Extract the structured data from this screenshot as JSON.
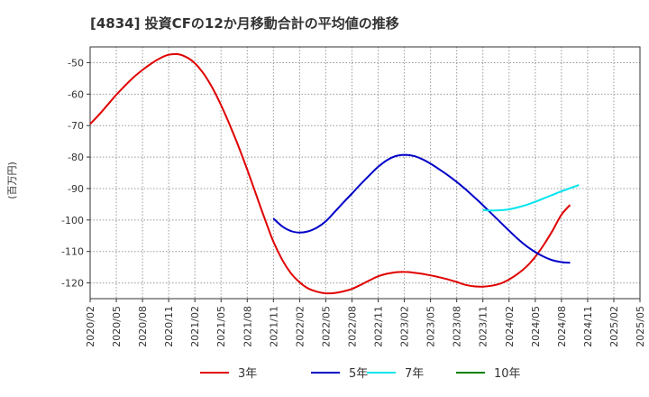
{
  "chart_data": {
    "type": "line",
    "title": "[4834]  投資CFの12か月移動合計の平均値の推移",
    "ylabel": "(百万円)",
    "xlabel": "",
    "ylim": [
      -125,
      -45
    ],
    "yticks": [
      -50,
      -60,
      -70,
      -80,
      -90,
      -100,
      -110,
      -120
    ],
    "xlim": [
      "2020-02",
      "2025-05"
    ],
    "xticks": [
      "2020/02",
      "2020/05",
      "2020/08",
      "2020/11",
      "2021/02",
      "2021/05",
      "2021/08",
      "2021/11",
      "2022/02",
      "2022/05",
      "2022/08",
      "2022/11",
      "2023/02",
      "2023/05",
      "2023/08",
      "2023/11",
      "2024/02",
      "2024/05",
      "2024/08",
      "2024/11",
      "2025/02",
      "2025/05"
    ],
    "grid": true,
    "legend_position": "bottom",
    "series": [
      {
        "name": "3年",
        "color": "#e00000",
        "points": [
          [
            "2020-02",
            -69.5
          ],
          [
            "2020-03",
            -66.6
          ],
          [
            "2020-04",
            -63.4
          ],
          [
            "2020-05",
            -60.2
          ],
          [
            "2020-06",
            -57.3
          ],
          [
            "2020-07",
            -54.6
          ],
          [
            "2020-08",
            -52.3
          ],
          [
            "2020-09",
            -50.3
          ],
          [
            "2020-10",
            -48.6
          ],
          [
            "2020-11",
            -47.5
          ],
          [
            "2020-12",
            -47.3
          ],
          [
            "2021-01",
            -48.2
          ],
          [
            "2021-02",
            -50.2
          ],
          [
            "2021-03",
            -53.5
          ],
          [
            "2021-04",
            -58.0
          ],
          [
            "2021-05",
            -63.5
          ],
          [
            "2021-06",
            -69.8
          ],
          [
            "2021-07",
            -76.6
          ],
          [
            "2021-08",
            -84.0
          ],
          [
            "2021-09",
            -91.8
          ],
          [
            "2021-10",
            -99.6
          ],
          [
            "2021-11",
            -106.9
          ],
          [
            "2021-12",
            -112.6
          ],
          [
            "2022-01",
            -116.9
          ],
          [
            "2022-02",
            -119.8
          ],
          [
            "2022-03",
            -121.8
          ],
          [
            "2022-04",
            -122.8
          ],
          [
            "2022-05",
            -123.3
          ],
          [
            "2022-06",
            -123.2
          ],
          [
            "2022-07",
            -122.7
          ],
          [
            "2022-08",
            -121.9
          ],
          [
            "2022-09",
            -120.6
          ],
          [
            "2022-10",
            -119.2
          ],
          [
            "2022-11",
            -117.9
          ],
          [
            "2022-12",
            -117.1
          ],
          [
            "2023-01",
            -116.6
          ],
          [
            "2023-02",
            -116.5
          ],
          [
            "2023-03",
            -116.7
          ],
          [
            "2023-04",
            -117.1
          ],
          [
            "2023-05",
            -117.6
          ],
          [
            "2023-06",
            -118.2
          ],
          [
            "2023-07",
            -118.9
          ],
          [
            "2023-08",
            -119.7
          ],
          [
            "2023-09",
            -120.6
          ],
          [
            "2023-10",
            -121.1
          ],
          [
            "2023-11",
            -121.2
          ],
          [
            "2023-12",
            -120.9
          ],
          [
            "2024-01",
            -120.2
          ],
          [
            "2024-02",
            -118.9
          ],
          [
            "2024-03",
            -117.1
          ],
          [
            "2024-04",
            -114.8
          ],
          [
            "2024-05",
            -111.7
          ],
          [
            "2024-06",
            -107.8
          ],
          [
            "2024-07",
            -103.3
          ],
          [
            "2024-08",
            -98.3
          ],
          [
            "2024-09",
            -95.2
          ]
        ]
      },
      {
        "name": "5年",
        "color": "#0000c8",
        "points": [
          [
            "2021-11",
            -99.5
          ],
          [
            "2021-12",
            -102.0
          ],
          [
            "2022-01",
            -103.5
          ],
          [
            "2022-02",
            -104.0
          ],
          [
            "2022-03",
            -103.6
          ],
          [
            "2022-04",
            -102.4
          ],
          [
            "2022-05",
            -100.4
          ],
          [
            "2022-06",
            -97.5
          ],
          [
            "2022-07",
            -94.5
          ],
          [
            "2022-08",
            -91.6
          ],
          [
            "2022-09",
            -88.6
          ],
          [
            "2022-10",
            -85.8
          ],
          [
            "2022-11",
            -83.1
          ],
          [
            "2022-12",
            -81.0
          ],
          [
            "2023-01",
            -79.7
          ],
          [
            "2023-02",
            -79.3
          ],
          [
            "2023-03",
            -79.6
          ],
          [
            "2023-04",
            -80.6
          ],
          [
            "2023-05",
            -82.1
          ],
          [
            "2023-06",
            -83.9
          ],
          [
            "2023-07",
            -85.8
          ],
          [
            "2023-08",
            -87.9
          ],
          [
            "2023-09",
            -90.2
          ],
          [
            "2023-10",
            -92.7
          ],
          [
            "2023-11",
            -95.3
          ],
          [
            "2023-12",
            -98.0
          ],
          [
            "2024-01",
            -100.7
          ],
          [
            "2024-02",
            -103.4
          ],
          [
            "2024-03",
            -106.0
          ],
          [
            "2024-04",
            -108.3
          ],
          [
            "2024-05",
            -110.2
          ],
          [
            "2024-06",
            -111.7
          ],
          [
            "2024-07",
            -112.8
          ],
          [
            "2024-08",
            -113.4
          ],
          [
            "2024-09",
            -113.6
          ]
        ]
      },
      {
        "name": "7年",
        "color": "#00e5ee",
        "points": [
          [
            "2023-11",
            -96.8
          ],
          [
            "2023-12",
            -97.0
          ],
          [
            "2024-01",
            -96.9
          ],
          [
            "2024-02",
            -96.6
          ],
          [
            "2024-03",
            -96.0
          ],
          [
            "2024-04",
            -95.2
          ],
          [
            "2024-05",
            -94.2
          ],
          [
            "2024-06",
            -93.1
          ],
          [
            "2024-07",
            -92.0
          ],
          [
            "2024-08",
            -90.9
          ],
          [
            "2024-09",
            -89.9
          ],
          [
            "2024-10",
            -88.9
          ]
        ]
      },
      {
        "name": "10年",
        "color": "#008000",
        "points": []
      }
    ]
  }
}
